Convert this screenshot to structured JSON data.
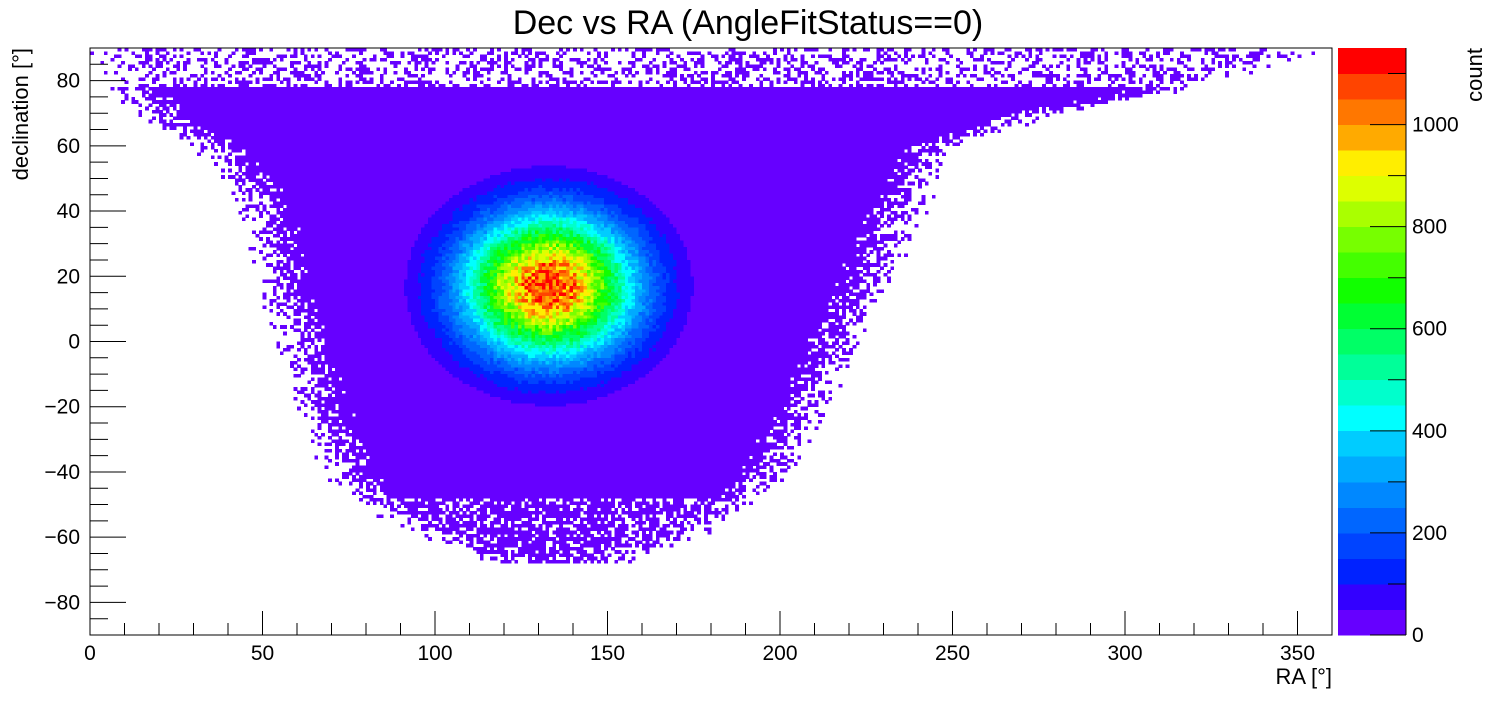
{
  "chart_data": {
    "type": "heatmap",
    "title": "Dec vs RA (AngleFitStatus==0)",
    "xlabel": "RA [°]",
    "ylabel": "declination [°]",
    "zlabel": "count",
    "xlim": [
      0,
      360
    ],
    "ylim": [
      -90,
      90
    ],
    "zlim": [
      0,
      1150
    ],
    "x_major_ticks": [
      0,
      50,
      100,
      150,
      200,
      250,
      300,
      350
    ],
    "y_major_ticks": [
      -80,
      -60,
      -40,
      -20,
      0,
      20,
      40,
      60,
      80
    ],
    "z_major_ticks": [
      0,
      200,
      400,
      600,
      800,
      1000
    ],
    "grid": false,
    "bins": {
      "ra_width": 1,
      "dec_width": 1
    },
    "distribution": {
      "peak_center": {
        "ra": 133,
        "dec": 17
      },
      "peak_count": 1100,
      "core_sigma": {
        "ra": 17,
        "dec": 15
      },
      "halo_level": 45,
      "halo_footprint": [
        {
          "dec": 90,
          "ra_min": 0,
          "ra_max": 360
        },
        {
          "dec": 80,
          "ra_min": 5,
          "ra_max": 330
        },
        {
          "dec": 70,
          "ra_min": 15,
          "ra_max": 280
        },
        {
          "dec": 60,
          "ra_min": 30,
          "ra_max": 250
        },
        {
          "dec": 50,
          "ra_min": 40,
          "ra_max": 245
        },
        {
          "dec": 40,
          "ra_min": 45,
          "ra_max": 240
        },
        {
          "dec": 20,
          "ra_min": 50,
          "ra_max": 232
        },
        {
          "dec": 0,
          "ra_min": 55,
          "ra_max": 222
        },
        {
          "dec": -20,
          "ra_min": 62,
          "ra_max": 212
        },
        {
          "dec": -40,
          "ra_min": 68,
          "ra_max": 202
        },
        {
          "dec": -50,
          "ra_min": 80,
          "ra_max": 192
        },
        {
          "dec": -60,
          "ra_min": 95,
          "ra_max": 175
        },
        {
          "dec": -68,
          "ra_min": 115,
          "ra_max": 155
        }
      ]
    },
    "palette": [
      "#6600ff",
      "#3300ff",
      "#0022ff",
      "#0044ff",
      "#0066ff",
      "#0088ff",
      "#00aaff",
      "#00ccff",
      "#00ffff",
      "#00ffcc",
      "#00ff99",
      "#00ff66",
      "#00ff33",
      "#11ff00",
      "#44ff00",
      "#77ff00",
      "#aaff00",
      "#ddff00",
      "#ffee00",
      "#ffaa00",
      "#ff7700",
      "#ff4400",
      "#ff0000"
    ]
  }
}
